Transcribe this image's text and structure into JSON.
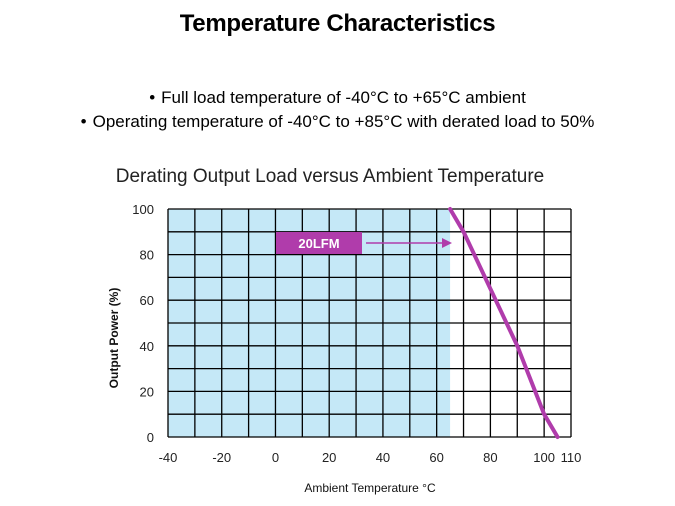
{
  "slide": {
    "title": "Temperature Characteristics",
    "bullets": [
      "Full load temperature of -40°C to +65°C ambient",
      "Operating temperature of -40°C to +85°C with derated load to 50%"
    ]
  },
  "colors": {
    "region_fill": "#c5e8f7",
    "line": "#b03cab",
    "label_bg": "#b03cab",
    "label_text": "#ffffff",
    "grid": "#000000"
  },
  "chart_data": {
    "type": "line",
    "title": "Derating Output Load versus Ambient Temperature",
    "xlabel": "Ambient Temperature °C",
    "ylabel": "Output Power (%)",
    "xlim": [
      -40,
      110
    ],
    "ylim": [
      0,
      100
    ],
    "x_ticks": [
      -40,
      -20,
      0,
      20,
      40,
      60,
      80,
      100,
      110
    ],
    "x_tick_labels": [
      "-40",
      "-20",
      "0",
      "20",
      "40",
      "60",
      "80",
      "100",
      "110"
    ],
    "y_ticks": [
      0,
      20,
      40,
      60,
      80,
      100
    ],
    "y_tick_labels": [
      "0",
      "20",
      "40",
      "60",
      "80",
      "100"
    ],
    "grid": true,
    "full_load_region": {
      "x_from": -40,
      "x_to": 65
    },
    "series": [
      {
        "name": "20LFM",
        "x": [
          65,
          70,
          80,
          90,
          100,
          105
        ],
        "y": [
          100,
          90,
          65,
          40,
          10,
          0
        ]
      }
    ],
    "annotation": {
      "text": "20LFM",
      "x": 61,
      "y": 86
    }
  }
}
